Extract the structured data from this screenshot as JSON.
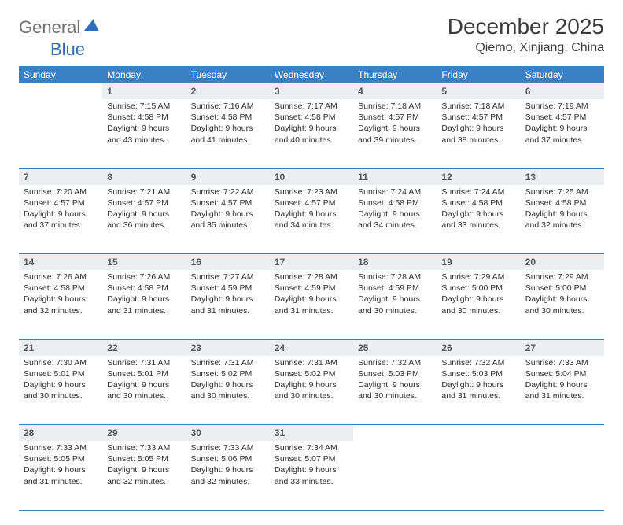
{
  "logo": {
    "general": "General",
    "blue": "Blue"
  },
  "title": "December 2025",
  "location": "Qiemo, Xinjiang, China",
  "colors": {
    "header_bg": "#3a80c4",
    "header_text": "#ffffff",
    "daynum_bg": "#eceff1",
    "daynum_text": "#55595c",
    "border": "#3a80c4",
    "logo_grey": "#6e6e6e",
    "logo_blue": "#2f6fb3"
  },
  "daysOfWeek": [
    "Sunday",
    "Monday",
    "Tuesday",
    "Wednesday",
    "Thursday",
    "Friday",
    "Saturday"
  ],
  "weeks": [
    [
      null,
      {
        "n": "1",
        "sr": "Sunrise: 7:15 AM",
        "ss": "Sunset: 4:58 PM",
        "dl": "Daylight: 9 hours and 43 minutes."
      },
      {
        "n": "2",
        "sr": "Sunrise: 7:16 AM",
        "ss": "Sunset: 4:58 PM",
        "dl": "Daylight: 9 hours and 41 minutes."
      },
      {
        "n": "3",
        "sr": "Sunrise: 7:17 AM",
        "ss": "Sunset: 4:58 PM",
        "dl": "Daylight: 9 hours and 40 minutes."
      },
      {
        "n": "4",
        "sr": "Sunrise: 7:18 AM",
        "ss": "Sunset: 4:57 PM",
        "dl": "Daylight: 9 hours and 39 minutes."
      },
      {
        "n": "5",
        "sr": "Sunrise: 7:18 AM",
        "ss": "Sunset: 4:57 PM",
        "dl": "Daylight: 9 hours and 38 minutes."
      },
      {
        "n": "6",
        "sr": "Sunrise: 7:19 AM",
        "ss": "Sunset: 4:57 PM",
        "dl": "Daylight: 9 hours and 37 minutes."
      }
    ],
    [
      {
        "n": "7",
        "sr": "Sunrise: 7:20 AM",
        "ss": "Sunset: 4:57 PM",
        "dl": "Daylight: 9 hours and 37 minutes."
      },
      {
        "n": "8",
        "sr": "Sunrise: 7:21 AM",
        "ss": "Sunset: 4:57 PM",
        "dl": "Daylight: 9 hours and 36 minutes."
      },
      {
        "n": "9",
        "sr": "Sunrise: 7:22 AM",
        "ss": "Sunset: 4:57 PM",
        "dl": "Daylight: 9 hours and 35 minutes."
      },
      {
        "n": "10",
        "sr": "Sunrise: 7:23 AM",
        "ss": "Sunset: 4:57 PM",
        "dl": "Daylight: 9 hours and 34 minutes."
      },
      {
        "n": "11",
        "sr": "Sunrise: 7:24 AM",
        "ss": "Sunset: 4:58 PM",
        "dl": "Daylight: 9 hours and 34 minutes."
      },
      {
        "n": "12",
        "sr": "Sunrise: 7:24 AM",
        "ss": "Sunset: 4:58 PM",
        "dl": "Daylight: 9 hours and 33 minutes."
      },
      {
        "n": "13",
        "sr": "Sunrise: 7:25 AM",
        "ss": "Sunset: 4:58 PM",
        "dl": "Daylight: 9 hours and 32 minutes."
      }
    ],
    [
      {
        "n": "14",
        "sr": "Sunrise: 7:26 AM",
        "ss": "Sunset: 4:58 PM",
        "dl": "Daylight: 9 hours and 32 minutes."
      },
      {
        "n": "15",
        "sr": "Sunrise: 7:26 AM",
        "ss": "Sunset: 4:58 PM",
        "dl": "Daylight: 9 hours and 31 minutes."
      },
      {
        "n": "16",
        "sr": "Sunrise: 7:27 AM",
        "ss": "Sunset: 4:59 PM",
        "dl": "Daylight: 9 hours and 31 minutes."
      },
      {
        "n": "17",
        "sr": "Sunrise: 7:28 AM",
        "ss": "Sunset: 4:59 PM",
        "dl": "Daylight: 9 hours and 31 minutes."
      },
      {
        "n": "18",
        "sr": "Sunrise: 7:28 AM",
        "ss": "Sunset: 4:59 PM",
        "dl": "Daylight: 9 hours and 30 minutes."
      },
      {
        "n": "19",
        "sr": "Sunrise: 7:29 AM",
        "ss": "Sunset: 5:00 PM",
        "dl": "Daylight: 9 hours and 30 minutes."
      },
      {
        "n": "20",
        "sr": "Sunrise: 7:29 AM",
        "ss": "Sunset: 5:00 PM",
        "dl": "Daylight: 9 hours and 30 minutes."
      }
    ],
    [
      {
        "n": "21",
        "sr": "Sunrise: 7:30 AM",
        "ss": "Sunset: 5:01 PM",
        "dl": "Daylight: 9 hours and 30 minutes."
      },
      {
        "n": "22",
        "sr": "Sunrise: 7:31 AM",
        "ss": "Sunset: 5:01 PM",
        "dl": "Daylight: 9 hours and 30 minutes."
      },
      {
        "n": "23",
        "sr": "Sunrise: 7:31 AM",
        "ss": "Sunset: 5:02 PM",
        "dl": "Daylight: 9 hours and 30 minutes."
      },
      {
        "n": "24",
        "sr": "Sunrise: 7:31 AM",
        "ss": "Sunset: 5:02 PM",
        "dl": "Daylight: 9 hours and 30 minutes."
      },
      {
        "n": "25",
        "sr": "Sunrise: 7:32 AM",
        "ss": "Sunset: 5:03 PM",
        "dl": "Daylight: 9 hours and 30 minutes."
      },
      {
        "n": "26",
        "sr": "Sunrise: 7:32 AM",
        "ss": "Sunset: 5:03 PM",
        "dl": "Daylight: 9 hours and 31 minutes."
      },
      {
        "n": "27",
        "sr": "Sunrise: 7:33 AM",
        "ss": "Sunset: 5:04 PM",
        "dl": "Daylight: 9 hours and 31 minutes."
      }
    ],
    [
      {
        "n": "28",
        "sr": "Sunrise: 7:33 AM",
        "ss": "Sunset: 5:05 PM",
        "dl": "Daylight: 9 hours and 31 minutes."
      },
      {
        "n": "29",
        "sr": "Sunrise: 7:33 AM",
        "ss": "Sunset: 5:05 PM",
        "dl": "Daylight: 9 hours and 32 minutes."
      },
      {
        "n": "30",
        "sr": "Sunrise: 7:33 AM",
        "ss": "Sunset: 5:06 PM",
        "dl": "Daylight: 9 hours and 32 minutes."
      },
      {
        "n": "31",
        "sr": "Sunrise: 7:34 AM",
        "ss": "Sunset: 5:07 PM",
        "dl": "Daylight: 9 hours and 33 minutes."
      },
      null,
      null,
      null
    ]
  ]
}
